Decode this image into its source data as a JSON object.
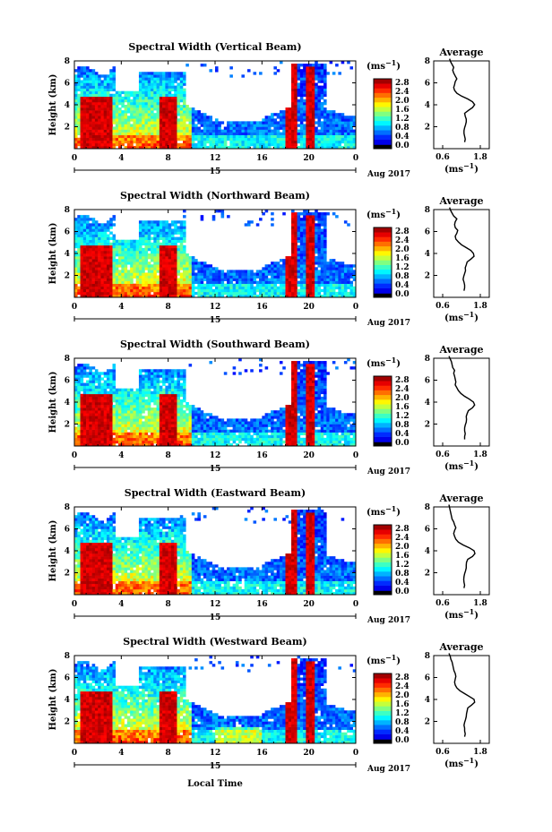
{
  "panels": [
    {
      "title": "Spectral Width (Vertical Beam)",
      "profile": [
        1.3,
        1.32,
        1.3,
        1.28,
        1.28,
        1.3,
        1.33,
        1.35,
        1.35,
        1.32,
        1.3,
        1.42,
        1.55,
        1.62,
        1.55,
        1.4,
        1.2,
        1.05,
        0.98,
        0.95,
        0.98,
        1.0,
        1.05,
        1.0,
        0.95,
        0.92,
        0.95,
        0.9,
        0.85,
        0.82
      ]
    },
    {
      "title": "Spectral Width (Northward Beam)",
      "profile": [
        1.28,
        1.3,
        1.3,
        1.28,
        1.25,
        1.27,
        1.3,
        1.33,
        1.32,
        1.35,
        1.38,
        1.5,
        1.6,
        1.58,
        1.5,
        1.35,
        1.2,
        1.1,
        1.02,
        1.0,
        1.05,
        1.08,
        1.0,
        0.98,
        1.0,
        1.05,
        0.95,
        0.9,
        0.85,
        0.82
      ]
    },
    {
      "title": "Spectral Width (Southward Beam)",
      "profile": [
        1.3,
        1.3,
        1.32,
        1.3,
        1.3,
        1.32,
        1.35,
        1.36,
        1.35,
        1.38,
        1.42,
        1.55,
        1.62,
        1.58,
        1.45,
        1.3,
        1.18,
        1.1,
        1.05,
        1.0,
        1.02,
        1.0,
        0.98,
        0.95,
        0.98,
        0.92,
        0.9,
        0.88,
        0.84,
        0.8
      ]
    },
    {
      "title": "Spectral Width (Eastward Beam)",
      "profile": [
        1.28,
        1.3,
        1.28,
        1.27,
        1.28,
        1.3,
        1.33,
        1.35,
        1.35,
        1.36,
        1.4,
        1.55,
        1.63,
        1.6,
        1.45,
        1.25,
        1.1,
        1.02,
        0.98,
        0.95,
        0.98,
        1.02,
        0.98,
        0.95,
        0.9,
        0.88,
        0.86,
        0.84,
        0.82,
        0.8
      ]
    },
    {
      "title": "Spectral Width (Westward Beam)",
      "profile": [
        1.3,
        1.32,
        1.3,
        1.3,
        1.28,
        1.3,
        1.33,
        1.35,
        1.36,
        1.38,
        1.4,
        1.52,
        1.62,
        1.6,
        1.45,
        1.3,
        1.15,
        1.05,
        1.0,
        0.98,
        1.0,
        1.02,
        1.0,
        0.96,
        0.94,
        0.92,
        0.9,
        0.86,
        0.84,
        0.8
      ]
    }
  ],
  "axis": {
    "ylabel": "Height (km)",
    "y_ticks": [
      "8",
      "6",
      "4",
      "2"
    ],
    "x_ticks": [
      "0",
      "4",
      "8",
      "12",
      "16",
      "20",
      "0"
    ],
    "date_day": "15",
    "date_label": "Aug 2017",
    "xlabel": "Local Time"
  },
  "colorbar": {
    "unit_label": "(ms",
    "unit_exp": "−1",
    "unit_close": ")",
    "ticks": [
      "2.8",
      "2.4",
      "2.0",
      "1.6",
      "1.2",
      "0.8",
      "0.4",
      "0.0"
    ]
  },
  "average": {
    "title": "Average",
    "y_ticks": [
      "8",
      "6",
      "4",
      "2"
    ],
    "x_ticks": [
      "0.6",
      "1.8"
    ],
    "xlabel": "(ms",
    "xlabel_exp": "−1",
    "xlabel_close": ")"
  },
  "chart_data": {
    "type": "heatmap",
    "title": "Spectral Width",
    "xlabel": "Local Time",
    "ylabel": "Height (km)",
    "x_range_hours": [
      0,
      24
    ],
    "y_range_km": [
      0,
      8
    ],
    "colorbar_range": [
      0.0,
      3.0
    ],
    "colorbar_unit": "ms-1",
    "date": "15 Aug 2017",
    "profile_x_range": [
      0.6,
      1.8
    ],
    "series": [
      "Vertical Beam",
      "Northward Beam",
      "Southward Beam",
      "Eastward Beam",
      "Westward Beam"
    ]
  },
  "colors": {
    "jet": [
      "#00008f",
      "#0000ff",
      "#0080ff",
      "#00ffff",
      "#80ff80",
      "#ffff00",
      "#ff8000",
      "#ff0000",
      "#800000"
    ]
  }
}
